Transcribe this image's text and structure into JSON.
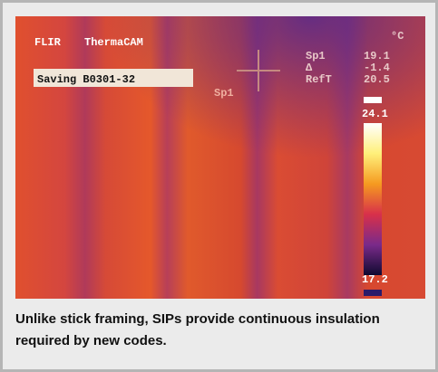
{
  "image": {
    "logo": "FLIR",
    "camera": "ThermaCAM",
    "status": "Saving B0301-32",
    "unit": "°C",
    "spot_label": "Sp1",
    "readouts": [
      [
        "Sp1",
        "19.1"
      ],
      [
        "Δ",
        "-1.4"
      ],
      [
        "RefT",
        "20.5"
      ]
    ],
    "scale_max": "24.1",
    "scale_min": "17.2"
  },
  "caption": "Unlike stick framing, SIPs provide continuous insulation required by new codes."
}
